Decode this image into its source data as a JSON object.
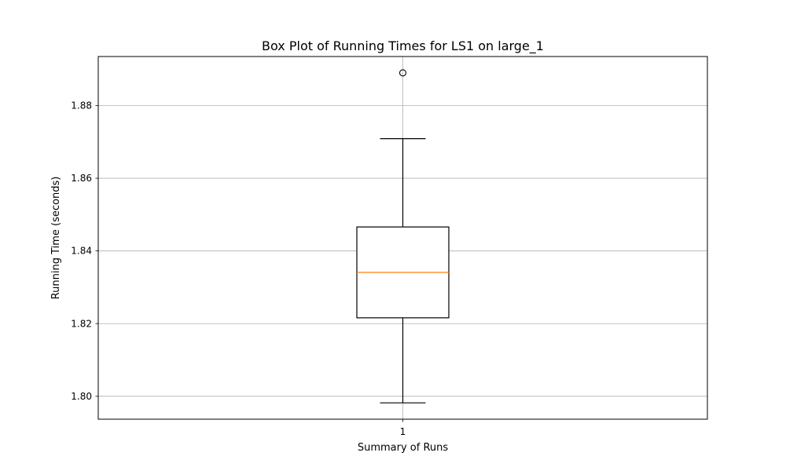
{
  "chart_data": {
    "type": "box",
    "title": "Box Plot of Running Times for LS1 on large_1",
    "xlabel": "Summary of Runs",
    "ylabel": "Running Time (seconds)",
    "categories": [
      "1"
    ],
    "ylim": [
      1.7937,
      1.8935
    ],
    "yticks": [
      1.8,
      1.82,
      1.84,
      1.86,
      1.88
    ],
    "ytick_labels": [
      "1.80",
      "1.82",
      "1.84",
      "1.86",
      "1.88"
    ],
    "grid": true,
    "boxes": [
      {
        "category": "1",
        "whisker_low": 1.7982,
        "q1": 1.8216,
        "median": 1.8341,
        "q3": 1.8466,
        "whisker_high": 1.8709,
        "outliers": [
          1.889
        ]
      }
    ],
    "colors": {
      "box": "#000000",
      "median": "#ff7f0e",
      "grid": "#b0b0b0"
    }
  }
}
